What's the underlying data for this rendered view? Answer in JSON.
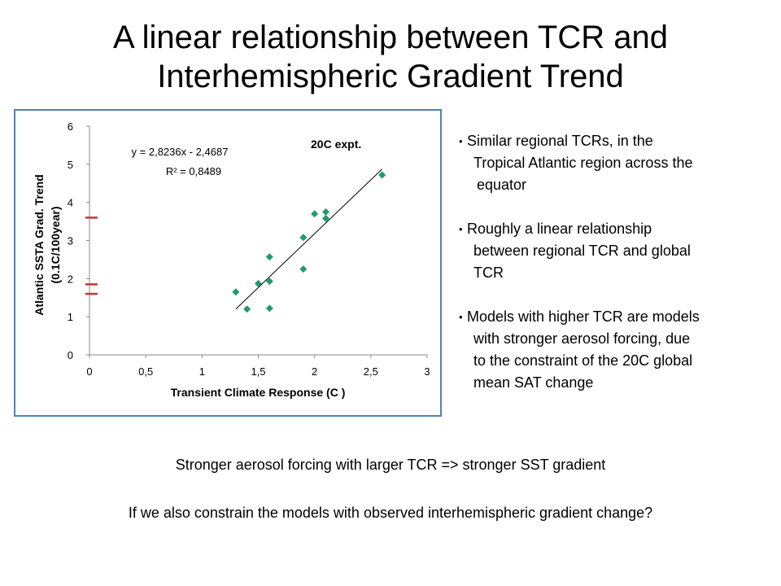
{
  "title": {
    "line1": "A linear relationship between TCR and",
    "line2": "Interhemispheric Gradient Trend"
  },
  "colors": {
    "marker": "#1f9a6b",
    "frame": "#4f81bd",
    "observation_mark": "#c0392b",
    "trendline": "#000000"
  },
  "chart_data": {
    "type": "scatter",
    "title": "",
    "annotation": "20C expt.",
    "equation": "y = 2,8236x - 2,4687",
    "r_squared": "R² = 0,8489",
    "xlabel": "Transient Climate Response (C )",
    "ylabel_line1": "Atlantic SSTA Grad. Trend",
    "ylabel_line2": "(0.1C/100year)",
    "xlim": [
      0,
      3
    ],
    "ylim": [
      0,
      6
    ],
    "x_ticks": [
      "0",
      "0,5",
      "1",
      "1,5",
      "2",
      "2,5",
      "3"
    ],
    "y_ticks": [
      "0",
      "1",
      "2",
      "3",
      "4",
      "5",
      "6"
    ],
    "points": [
      {
        "x": 1.3,
        "y": 1.65
      },
      {
        "x": 1.4,
        "y": 1.2
      },
      {
        "x": 1.5,
        "y": 1.87
      },
      {
        "x": 1.6,
        "y": 2.57
      },
      {
        "x": 1.6,
        "y": 1.93
      },
      {
        "x": 1.6,
        "y": 1.22
      },
      {
        "x": 1.9,
        "y": 3.08
      },
      {
        "x": 1.9,
        "y": 2.25
      },
      {
        "x": 2.0,
        "y": 3.7
      },
      {
        "x": 2.1,
        "y": 3.75
      },
      {
        "x": 2.1,
        "y": 3.58
      },
      {
        "x": 2.6,
        "y": 4.72
      }
    ],
    "trendline": {
      "slope": 2.8236,
      "intercept": -2.4687,
      "x_range": [
        1.3,
        2.6
      ]
    },
    "observation_marks_y": [
      3.6,
      1.85,
      1.6
    ],
    "grid": false
  },
  "bullets": [
    {
      "lines": [
        "Similar regional TCRs, in the",
        "Tropical Atlantic region across the",
        "equator"
      ]
    },
    {
      "lines": [
        "Roughly a linear relationship",
        "between regional TCR and global",
        "TCR"
      ]
    },
    {
      "lines": [
        "Models with higher TCR are models",
        "with stronger aerosol forcing, due",
        "to the constraint of the 20C global",
        "mean SAT change"
      ]
    }
  ],
  "bottom": {
    "line1": "Stronger aerosol forcing with larger TCR => stronger SST gradient",
    "line2": "If we also constrain the models with observed interhemispheric gradient change?"
  }
}
